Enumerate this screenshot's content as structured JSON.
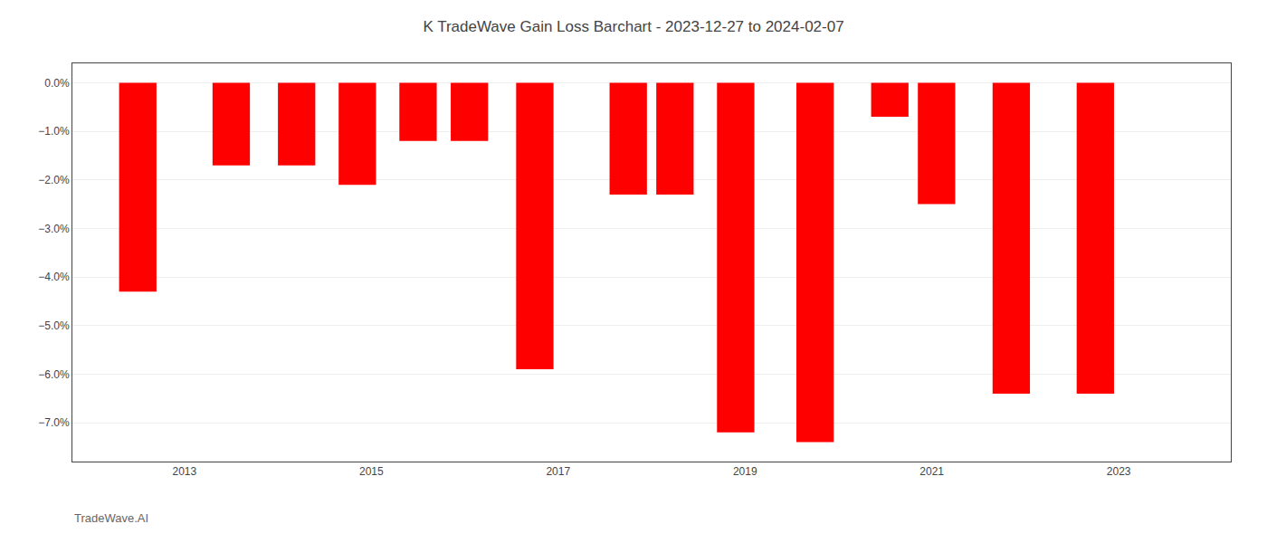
{
  "chart_data": {
    "type": "bar",
    "title": "K TradeWave Gain Loss Barchart - 2023-12-27 to 2024-02-07",
    "annotations": [
      "TradeWave.AI"
    ],
    "x": [
      2012.5,
      2013.5,
      2014.2,
      2014.85,
      2015.5,
      2016.05,
      2016.75,
      2017.75,
      2018.25,
      2018.9,
      2019.75,
      2020.55,
      2021.05,
      2021.85,
      2022.75
    ],
    "values": [
      -4.3,
      -1.7,
      -1.7,
      -2.1,
      -1.2,
      -1.2,
      -5.9,
      -2.3,
      -2.3,
      -7.2,
      -7.4,
      -0.7,
      -2.5,
      -6.4,
      -6.4
    ],
    "color": "#ff0000",
    "xlim": [
      2011.8,
      2024.2
    ],
    "xticks": [
      2013,
      2015,
      2017,
      2019,
      2021,
      2023
    ],
    "ylim": [
      -7.8,
      0.4
    ],
    "yticks": [
      {
        "value": 0.0,
        "label": "0.0%"
      },
      {
        "value": -1.0,
        "label": "−1.0%"
      },
      {
        "value": -2.0,
        "label": "−2.0%"
      },
      {
        "value": -3.0,
        "label": "−3.0%"
      },
      {
        "value": -4.0,
        "label": "−4.0%"
      },
      {
        "value": -5.0,
        "label": "−5.0%"
      },
      {
        "value": -6.0,
        "label": "−6.0%"
      },
      {
        "value": -7.0,
        "label": "−7.0%"
      }
    ],
    "grid": true
  }
}
